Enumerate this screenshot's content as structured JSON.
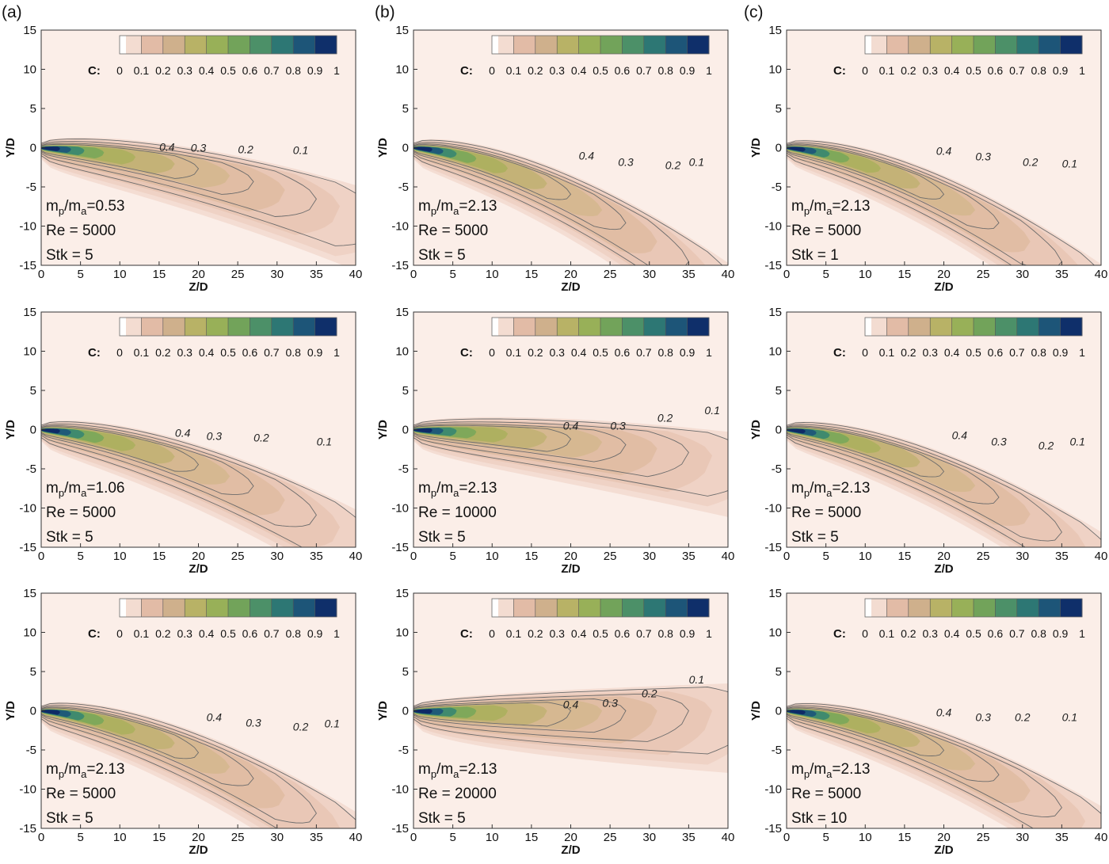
{
  "columns": [
    "(a)",
    "(b)",
    "(c)"
  ],
  "colorbar": {
    "label": "C:",
    "ticks": [
      "0",
      "0.1",
      "0.2",
      "0.3",
      "0.4",
      "0.5",
      "0.6",
      "0.7",
      "0.8",
      "0.9",
      "1"
    ],
    "colors": [
      "#fdf3ee",
      "#f3dcd1",
      "#e2bba6",
      "#cfb08c",
      "#b8b266",
      "#98b058",
      "#72a35a",
      "#4c9068",
      "#2d7774",
      "#1d5578",
      "#0f2f6a"
    ]
  },
  "chart_data": [
    {
      "type": "heatmap",
      "panel": "a1",
      "xlabel": "Z/D",
      "ylabel": "Y/D",
      "xlim": [
        0,
        40
      ],
      "ylim": [
        -15,
        15
      ],
      "xticks": [
        0,
        5,
        10,
        15,
        20,
        25,
        30,
        35,
        40
      ],
      "yticks": [
        -15,
        -10,
        -5,
        0,
        5,
        10,
        15
      ],
      "contour_labels": [
        {
          "value": "0.4",
          "x": 16,
          "y": 0.1
        },
        {
          "value": "0.3",
          "x": 20,
          "y": 0.0
        },
        {
          "value": "0.2",
          "x": 26,
          "y": -0.2
        },
        {
          "value": "0.1",
          "x": 33,
          "y": -0.3
        }
      ],
      "mass_ratio": "0.53",
      "re": "5000",
      "stk": "5",
      "spread": 1.0,
      "drop": 0.45
    },
    {
      "type": "heatmap",
      "panel": "b1",
      "xlabel": "Z/D",
      "ylabel": "Y/D",
      "xlim": [
        0,
        40
      ],
      "ylim": [
        -15,
        15
      ],
      "xticks": [
        0,
        5,
        10,
        15,
        20,
        25,
        30,
        35,
        40
      ],
      "yticks": [
        -15,
        -10,
        -5,
        0,
        5,
        10,
        15
      ],
      "contour_labels": [
        {
          "value": "0.4",
          "x": 22,
          "y": -1.0
        },
        {
          "value": "0.3",
          "x": 27,
          "y": -1.8
        },
        {
          "value": "0.2",
          "x": 33,
          "y": -2.2
        },
        {
          "value": "0.1",
          "x": 36,
          "y": -1.8
        }
      ],
      "mass_ratio": "2.13",
      "re": "5000",
      "stk": "5",
      "spread": 1.0,
      "drop": 1.0
    },
    {
      "type": "heatmap",
      "panel": "c1",
      "xlabel": "Z/D",
      "ylabel": "Y/D",
      "xlim": [
        0,
        40
      ],
      "ylim": [
        -15,
        15
      ],
      "xticks": [
        0,
        5,
        10,
        15,
        20,
        25,
        30,
        35,
        40
      ],
      "yticks": [
        -15,
        -10,
        -5,
        0,
        5,
        10,
        15
      ],
      "contour_labels": [
        {
          "value": "0.4",
          "x": 20,
          "y": -0.4
        },
        {
          "value": "0.3",
          "x": 25,
          "y": -1.1
        },
        {
          "value": "0.2",
          "x": 31,
          "y": -1.8
        },
        {
          "value": "0.1",
          "x": 36,
          "y": -2.0
        }
      ],
      "mass_ratio": "2.13",
      "re": "5000",
      "stk": "1",
      "spread": 0.95,
      "drop": 1.0
    },
    {
      "type": "heatmap",
      "panel": "a2",
      "xlabel": "Z/D",
      "ylabel": "Y/D",
      "xlim": [
        0,
        40
      ],
      "ylim": [
        -15,
        15
      ],
      "xticks": [
        0,
        5,
        10,
        15,
        20,
        25,
        30,
        35,
        40
      ],
      "yticks": [
        -15,
        -10,
        -5,
        0,
        5,
        10,
        15
      ],
      "contour_labels": [
        {
          "value": "0.4",
          "x": 18,
          "y": -0.4
        },
        {
          "value": "0.3",
          "x": 22,
          "y": -0.8
        },
        {
          "value": "0.2",
          "x": 28,
          "y": -1.0
        },
        {
          "value": "0.1",
          "x": 36,
          "y": -1.5
        }
      ],
      "mass_ratio": "1.06",
      "re": "5000",
      "stk": "5",
      "spread": 1.0,
      "drop": 0.75
    },
    {
      "type": "heatmap",
      "panel": "b2",
      "xlabel": "Z/D",
      "ylabel": "Y/D",
      "xlim": [
        0,
        40
      ],
      "ylim": [
        -15,
        15
      ],
      "xticks": [
        0,
        5,
        10,
        15,
        20,
        25,
        30,
        35,
        40
      ],
      "yticks": [
        -15,
        -10,
        -5,
        0,
        5,
        10,
        15
      ],
      "contour_labels": [
        {
          "value": "0.4",
          "x": 20,
          "y": 0.5
        },
        {
          "value": "0.3",
          "x": 26,
          "y": 0.5
        },
        {
          "value": "0.2",
          "x": 32,
          "y": 1.5
        },
        {
          "value": "0.1",
          "x": 38,
          "y": 2.5
        }
      ],
      "mass_ratio": "2.13",
      "re": "10000",
      "stk": "5",
      "spread": 1.0,
      "drop": 0.2
    },
    {
      "type": "heatmap",
      "panel": "c2",
      "xlabel": "Z/D",
      "ylabel": "Y/D",
      "xlim": [
        0,
        40
      ],
      "ylim": [
        -15,
        15
      ],
      "xticks": [
        0,
        5,
        10,
        15,
        20,
        25,
        30,
        35,
        40
      ],
      "yticks": [
        -15,
        -10,
        -5,
        0,
        5,
        10,
        15
      ],
      "contour_labels": [
        {
          "value": "0.4",
          "x": 22,
          "y": -0.7
        },
        {
          "value": "0.3",
          "x": 27,
          "y": -1.5
        },
        {
          "value": "0.2",
          "x": 33,
          "y": -2.0
        },
        {
          "value": "0.1",
          "x": 37,
          "y": -1.5
        }
      ],
      "mass_ratio": "2.13",
      "re": "5000",
      "stk": "5",
      "spread": 0.95,
      "drop": 0.9
    },
    {
      "type": "heatmap",
      "panel": "a3",
      "xlabel": "Z/D",
      "ylabel": "Y/D",
      "xlim": [
        0,
        40
      ],
      "ylim": [
        -15,
        15
      ],
      "xticks": [
        0,
        5,
        10,
        15,
        20,
        25,
        30,
        35,
        40
      ],
      "yticks": [
        -15,
        -10,
        -5,
        0,
        5,
        10,
        15
      ],
      "contour_labels": [
        {
          "value": "0.4",
          "x": 22,
          "y": -0.8
        },
        {
          "value": "0.3",
          "x": 27,
          "y": -1.5
        },
        {
          "value": "0.2",
          "x": 33,
          "y": -2.0
        },
        {
          "value": "0.1",
          "x": 37,
          "y": -1.6
        }
      ],
      "mass_ratio": "2.13",
      "re": "5000",
      "stk": "5",
      "spread": 1.0,
      "drop": 0.9
    },
    {
      "type": "heatmap",
      "panel": "b3",
      "xlabel": "Z/D",
      "ylabel": "Y/D",
      "xlim": [
        0,
        40
      ],
      "ylim": [
        -15,
        15
      ],
      "xticks": [
        0,
        5,
        10,
        15,
        20,
        25,
        30,
        35,
        40
      ],
      "yticks": [
        -15,
        -10,
        -5,
        0,
        5,
        10,
        15
      ],
      "contour_labels": [
        {
          "value": "0.4",
          "x": 20,
          "y": 0.8
        },
        {
          "value": "0.3",
          "x": 25,
          "y": 1.0
        },
        {
          "value": "0.2",
          "x": 30,
          "y": 2.2
        },
        {
          "value": "0.1",
          "x": 36,
          "y": 4.0
        }
      ],
      "mass_ratio": "2.13",
      "re": "20000",
      "stk": "5",
      "spread": 1.05,
      "drop": 0.0
    },
    {
      "type": "heatmap",
      "panel": "c3",
      "xlabel": "Z/D",
      "ylabel": "Y/D",
      "xlim": [
        0,
        40
      ],
      "ylim": [
        -15,
        15
      ],
      "xticks": [
        0,
        5,
        10,
        15,
        20,
        25,
        30,
        35,
        40
      ],
      "yticks": [
        -15,
        -10,
        -5,
        0,
        5,
        10,
        15
      ],
      "contour_labels": [
        {
          "value": "0.4",
          "x": 20,
          "y": -0.2
        },
        {
          "value": "0.3",
          "x": 25,
          "y": -0.8
        },
        {
          "value": "0.2",
          "x": 30,
          "y": -0.8
        },
        {
          "value": "0.1",
          "x": 36,
          "y": -0.8
        }
      ],
      "mass_ratio": "2.13",
      "re": "5000",
      "stk": "10",
      "spread": 0.95,
      "drop": 0.85
    }
  ]
}
